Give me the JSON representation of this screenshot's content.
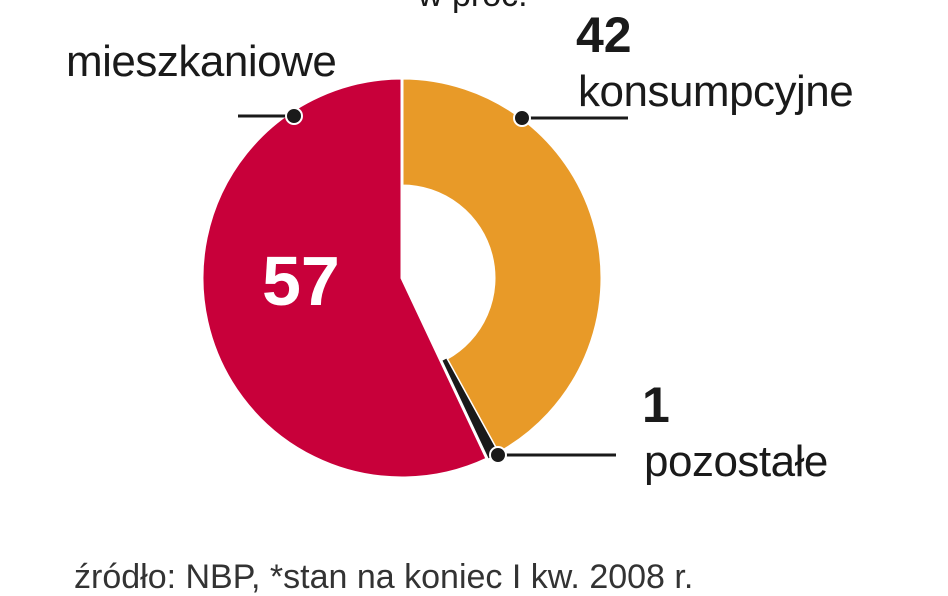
{
  "top_text_partial": "w proc.",
  "chart_data": {
    "type": "pie",
    "style": "donut",
    "slices": [
      {
        "label": "mieszkaniowe",
        "value": 57,
        "color": "#c8003a"
      },
      {
        "label": "konsumpcyjne",
        "value": 42,
        "color": "#e89a28"
      },
      {
        "label": "pozostałe",
        "value": 1,
        "color": "#1a1a1a"
      }
    ],
    "legend": "callout-labels"
  },
  "source": "źródło: NBP, *stan na koniec I kw. 2008 r."
}
